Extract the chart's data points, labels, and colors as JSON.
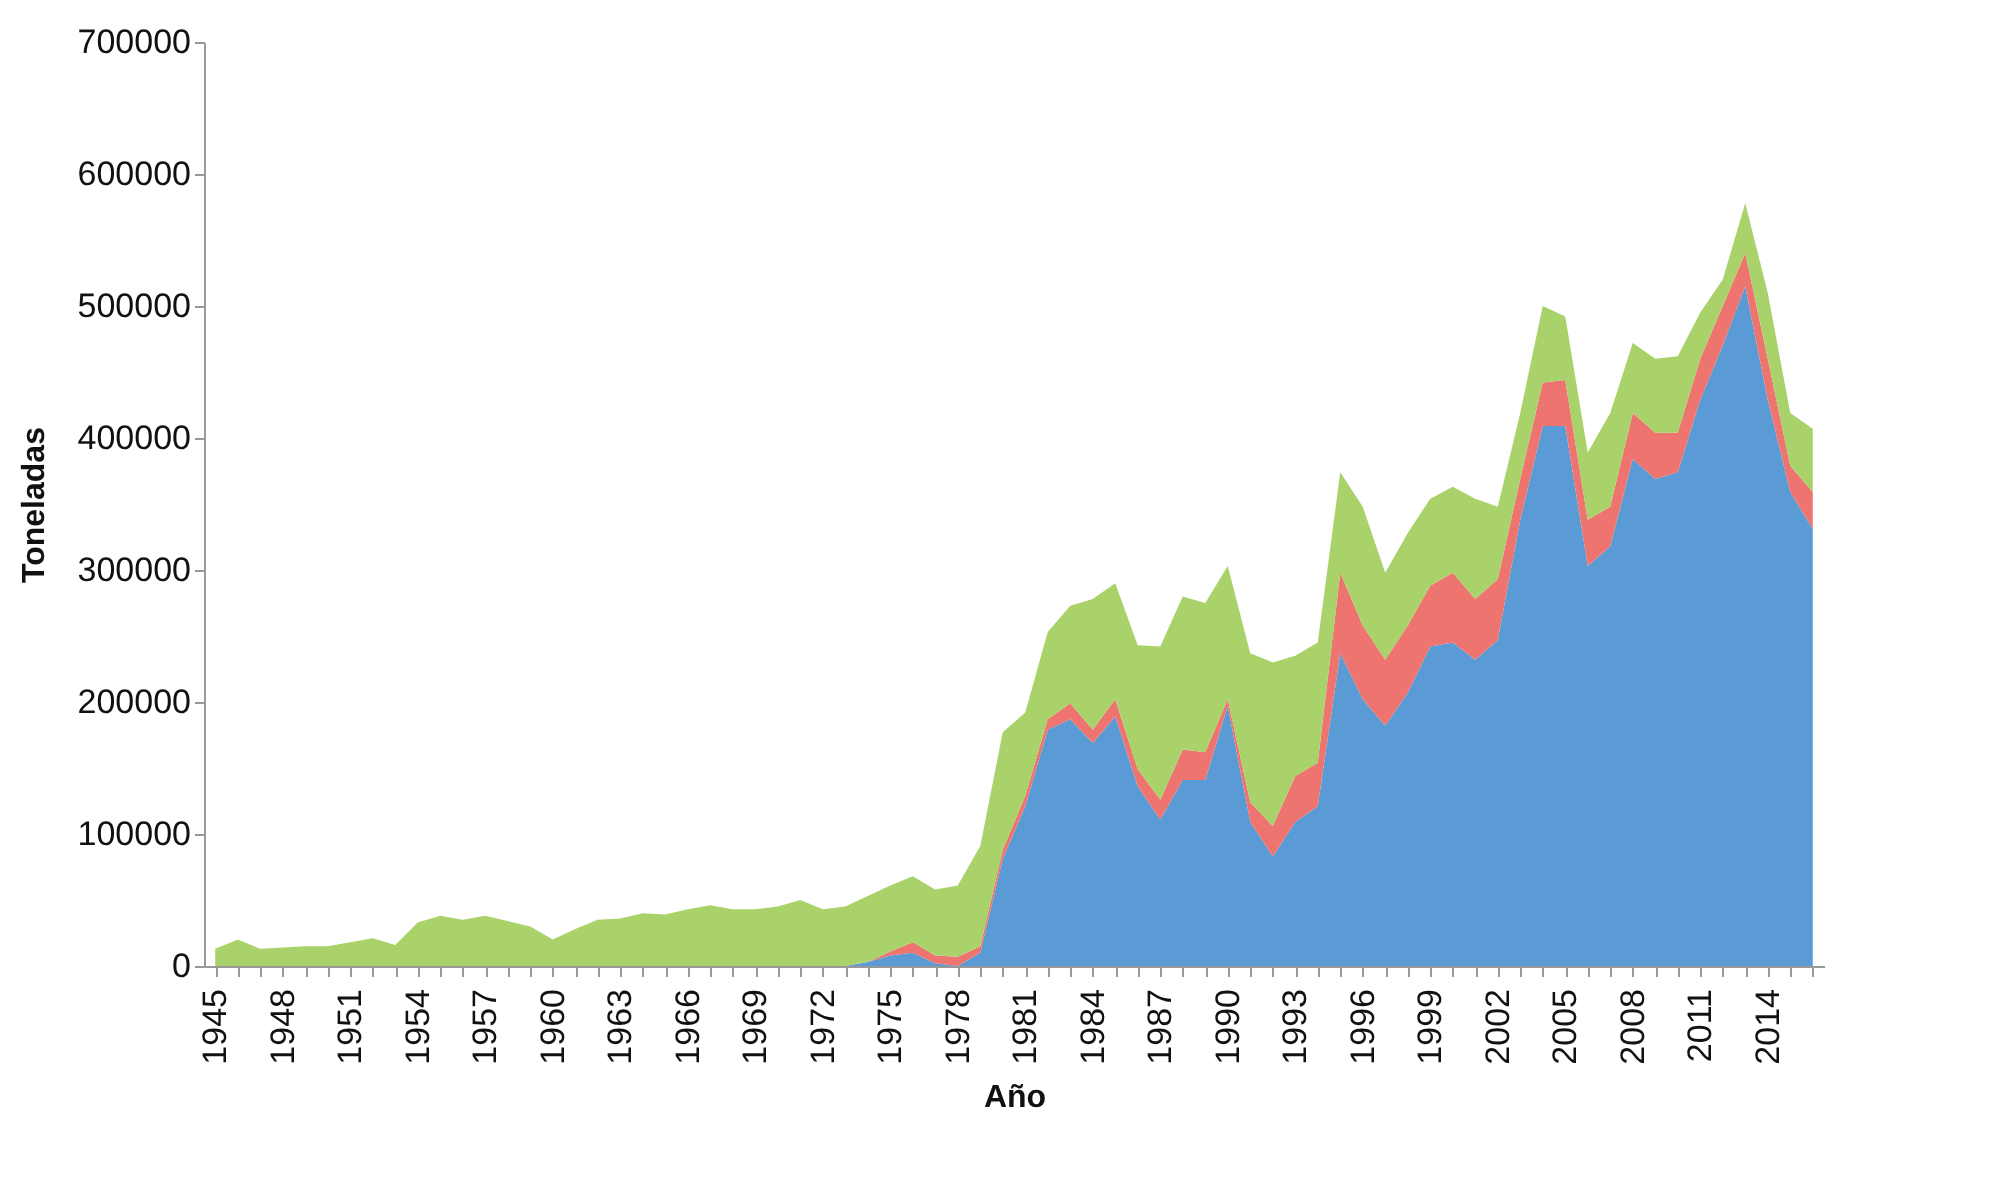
{
  "chart_data": {
    "type": "area",
    "stacked": true,
    "xlabel": "Año",
    "ylabel": "Toneladas",
    "categories": [
      "1945",
      null,
      null,
      "1948",
      null,
      null,
      "1951",
      null,
      null,
      "1954",
      null,
      null,
      "1957",
      null,
      null,
      "1960",
      null,
      null,
      "1963",
      null,
      null,
      "1966",
      null,
      null,
      "1969",
      null,
      null,
      "1972",
      null,
      null,
      "1975",
      null,
      null,
      "1978",
      null,
      null,
      "1981",
      null,
      null,
      "1984",
      null,
      null,
      "1987",
      null,
      null,
      "1990",
      null,
      null,
      "1993",
      null,
      null,
      "1996",
      null,
      null,
      "1999",
      null,
      null,
      "2002",
      null,
      null,
      "2005",
      null,
      null,
      "2008",
      null,
      null,
      "2011",
      null,
      null,
      "2014",
      null,
      null
    ],
    "series": [
      {
        "color": "#5b9bd5",
        "values": [
          0,
          0,
          0,
          0,
          0,
          0,
          0,
          0,
          0,
          0,
          0,
          0,
          0,
          0,
          0,
          0,
          0,
          0,
          0,
          0,
          0,
          0,
          0,
          0,
          0,
          0,
          0,
          0,
          0,
          3000,
          8000,
          10000,
          2000,
          0,
          10000,
          81000,
          121000,
          179000,
          187000,
          169000,
          189000,
          136000,
          111000,
          141000,
          141000,
          197000,
          109000,
          83000,
          109000,
          121000,
          237000,
          202000,
          182000,
          207000,
          242000,
          245000,
          232000,
          247000,
          338000,
          409000,
          409000,
          303000,
          318000,
          384000,
          369000,
          374000,
          429000,
          470000,
          515000,
          429000,
          359000,
          331000
        ]
      },
      {
        "color": "#ee7470",
        "values": [
          0,
          0,
          0,
          0,
          0,
          0,
          0,
          0,
          0,
          0,
          0,
          0,
          0,
          0,
          0,
          0,
          0,
          0,
          0,
          0,
          0,
          0,
          0,
          0,
          0,
          0,
          0,
          0,
          0,
          0,
          3000,
          8000,
          6000,
          7000,
          5000,
          7000,
          8000,
          8000,
          12000,
          10000,
          13000,
          13000,
          15000,
          23000,
          21000,
          5000,
          15000,
          23000,
          35000,
          33000,
          61000,
          56000,
          50000,
          51000,
          46000,
          53000,
          46000,
          46000,
          31000,
          33000,
          35000,
          35000,
          30000,
          35000,
          35000,
          30000,
          31000,
          30000,
          25000,
          31000,
          20000,
          28000
        ]
      },
      {
        "color": "#a9d36a",
        "values": [
          13000,
          20000,
          13000,
          14000,
          15000,
          15000,
          18000,
          21000,
          16000,
          33000,
          38000,
          35000,
          38000,
          34000,
          30000,
          20000,
          28000,
          35000,
          36000,
          40000,
          39000,
          43000,
          46000,
          43000,
          43000,
          45000,
          50000,
          43000,
          45000,
          50000,
          50000,
          50000,
          50000,
          54000,
          76000,
          89000,
          63000,
          66000,
          74000,
          99000,
          88000,
          94000,
          116000,
          116000,
          113000,
          101000,
          113000,
          124000,
          91000,
          91000,
          76000,
          90000,
          66000,
          70000,
          66000,
          65000,
          76000,
          55000,
          50000,
          58000,
          48000,
          51000,
          71000,
          53000,
          56000,
          58000,
          35000,
          20000,
          38000,
          50000,
          40000,
          48000
        ]
      }
    ],
    "ylim": [
      0,
      700000
    ],
    "yticks": [
      0,
      100000,
      200000,
      300000,
      400000,
      500000,
      600000,
      700000
    ],
    "grid": false,
    "legend": false
  }
}
